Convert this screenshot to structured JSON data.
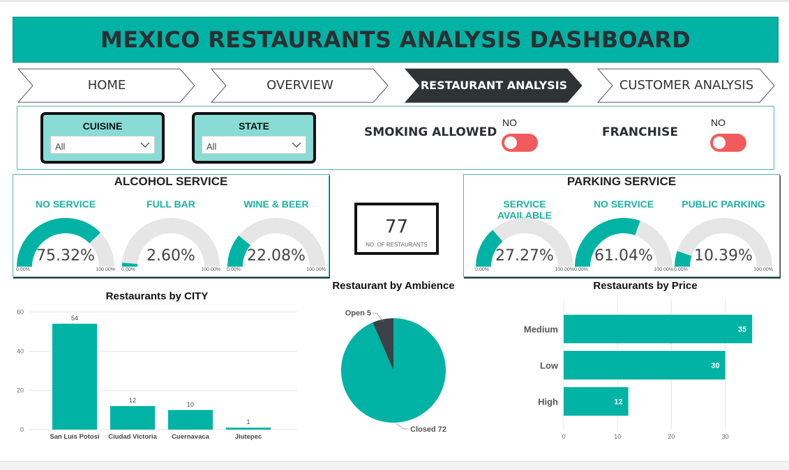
{
  "title": "MEXICO RESTAURANTS ANALYSIS DASHBOARD",
  "nav": [
    {
      "label": "HOME",
      "active": false
    },
    {
      "label": "OVERVIEW",
      "active": false
    },
    {
      "label": "RESTAURANT ANALYSIS",
      "active": true
    },
    {
      "label": "CUSTOMER ANALYSIS",
      "active": false
    }
  ],
  "filters": {
    "cuisine": {
      "label": "CUISINE",
      "value": "All"
    },
    "state": {
      "label": "STATE",
      "value": "All"
    },
    "smoking": {
      "label": "SMOKING ALLOWED",
      "state": "NO"
    },
    "franchise": {
      "label": "FRANCHISE",
      "state": "NO"
    }
  },
  "colors": {
    "accent": "#00b3a4",
    "toggle": "#f25b5b",
    "dark": "#2e3336",
    "gauge_bg": "#e6e6e6"
  },
  "alcohol": {
    "title": "ALCOHOL SERVICE",
    "gauges": [
      {
        "label": "NO SERVICE",
        "value_text": "75.32%",
        "value": 75.32,
        "min": "0.00%",
        "max": "100.00%"
      },
      {
        "label": "FULL BAR",
        "value_text": "2.60%",
        "value": 2.6,
        "min": "0.00%",
        "max": "100.00%"
      },
      {
        "label": "WINE & BEER",
        "value_text": "22.08%",
        "value": 22.08,
        "min": "0.00%",
        "max": "100.00%"
      }
    ]
  },
  "parking": {
    "title": "PARKING SERVICE",
    "gauges": [
      {
        "label": "SERVICE AVAILABLE",
        "value_text": "27.27%",
        "value": 27.27,
        "min": "0.00%",
        "max": "100.00%"
      },
      {
        "label": "NO SERVICE",
        "value_text": "61.04%",
        "value": 61.04,
        "min": "0.00%",
        "max": "100.00%"
      },
      {
        "label": "PUBLIC PARKING",
        "value_text": "10.39%",
        "value": 10.39,
        "min": "0.00%",
        "max": "100.00%"
      }
    ]
  },
  "kpi": {
    "value": "77",
    "label": "NO. OF RESTAURANTS"
  },
  "chart_data": [
    {
      "type": "bar",
      "title": "Restaurants by CITY",
      "categories": [
        "San Luis Potosi",
        "Ciudad Victoria",
        "Cuernavaca",
        "Jiutepec"
      ],
      "values": [
        54,
        12,
        10,
        1
      ],
      "ylim": [
        0,
        60
      ],
      "yticks": [
        0,
        20,
        40,
        60
      ],
      "grid": true
    },
    {
      "type": "pie",
      "title": "Restaurant by Ambience",
      "slices": [
        {
          "label": "Closed",
          "value": 72,
          "color": "#00b3a4"
        },
        {
          "label": "Open",
          "value": 5,
          "color": "#3b4348"
        }
      ]
    },
    {
      "type": "bar",
      "orientation": "horizontal",
      "title": "Restaurants by Price",
      "categories": [
        "Medium",
        "Low",
        "High"
      ],
      "values": [
        35,
        30,
        12
      ],
      "xlim": [
        0,
        37.5
      ],
      "xticks": [
        0,
        10,
        20,
        30
      ],
      "grid": true
    }
  ]
}
